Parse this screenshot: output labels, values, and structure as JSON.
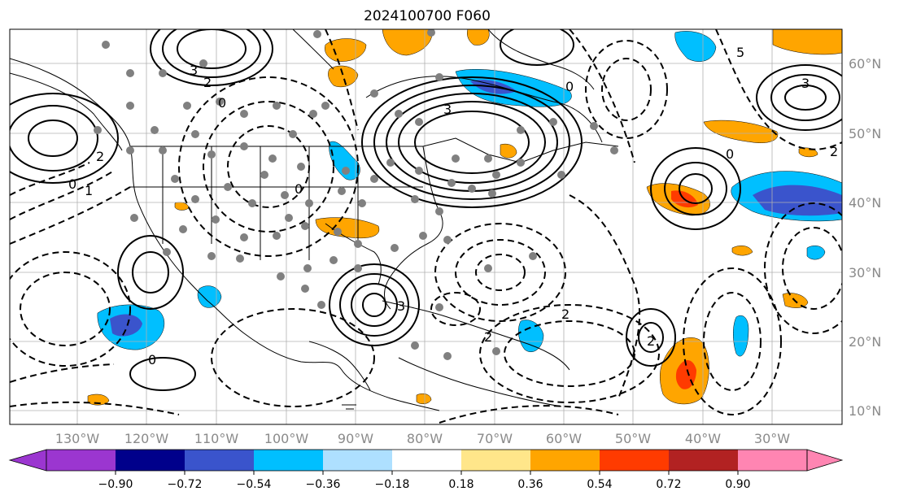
{
  "title": "2024100700 F060",
  "lon_ticks": [
    "130°W",
    "120°W",
    "110°W",
    "100°W",
    "90°W",
    "80°W",
    "70°W",
    "60°W",
    "50°W",
    "40°W",
    "30°W"
  ],
  "lat_ticks": [
    "60°N",
    "50°N",
    "40°N",
    "30°N",
    "20°N",
    "10°N"
  ],
  "colorbar": {
    "colors": [
      "#9b36d0",
      "#00008b",
      "#3a54cc",
      "#00bfff",
      "#aee0ff",
      "#ffffff",
      "#ffe68a",
      "#ffa500",
      "#ff3b00",
      "#b22222",
      "#ff85b2"
    ],
    "labels": [
      "−0.90",
      "−0.72",
      "−0.54",
      "−0.36",
      "−0.18",
      "0.18",
      "0.36",
      "0.54",
      "0.72",
      "0.90"
    ]
  },
  "contour_labels": [
    "3",
    "2",
    "2",
    "0",
    "1",
    "0",
    "3",
    "5",
    "0",
    "0",
    "2",
    "0",
    "2",
    "3",
    "2",
    "0",
    "3",
    "2"
  ],
  "legend_colors": {
    "light_blue": "#00bfff",
    "dark_blue": "#3a54cc",
    "orange": "#ffa500",
    "red": "#ff3b00",
    "dot": "#808080",
    "contour": "#000000"
  }
}
